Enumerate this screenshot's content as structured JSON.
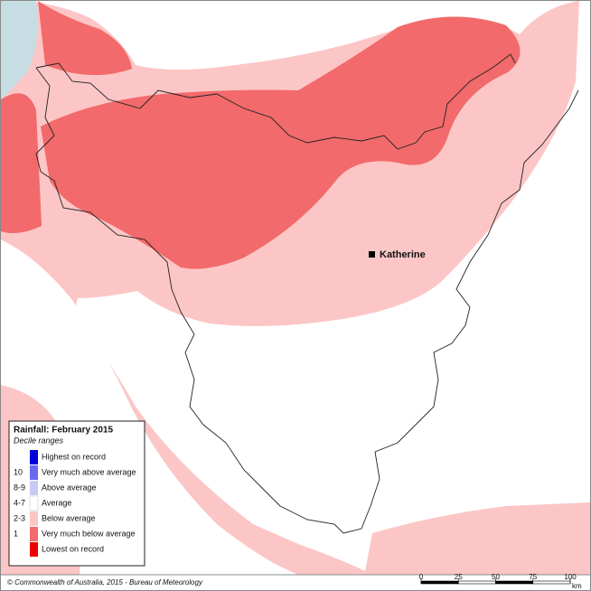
{
  "legend": {
    "title": "Rainfall: February 2015",
    "subtitle": "Decile ranges",
    "items": [
      {
        "label": "Highest on record",
        "color": "#0000dd"
      },
      {
        "decile": "10",
        "label": "Very much above average",
        "color": "#6a6aee"
      },
      {
        "decile": "8-9",
        "label": "Above average",
        "color": "#c9c9f5"
      },
      {
        "decile": "4-7",
        "label": "Average",
        "color": "#ffffff"
      },
      {
        "decile": "2-3",
        "label": "Below average",
        "color": "#fcc6c6"
      },
      {
        "decile": "1",
        "label": "Very much below average",
        "color": "#f26a6b"
      },
      {
        "label": "Lowest on record",
        "color": "#ee0000"
      }
    ]
  },
  "place": "Katherine",
  "credit": "© Commonwealth of Australia, 2015 - Bureau of Meteorology",
  "scale": {
    "ticks": [
      0,
      25,
      50,
      75,
      100
    ],
    "unit": "km"
  }
}
